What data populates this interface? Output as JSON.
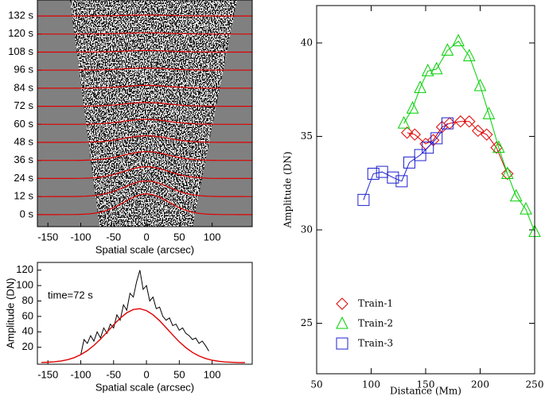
{
  "chart_data": [
    {
      "type": "image",
      "xlabel": "Spatial scale (arcsec)",
      "xlim": [
        -166,
        161
      ],
      "xticks": [
        -150,
        -100,
        -50,
        0,
        50,
        100
      ],
      "ylim": [
        -8,
        142.6
      ],
      "yticks": [
        {
          "value": 0,
          "label": "0 s"
        },
        {
          "value": 12,
          "label": "12 s"
        },
        {
          "value": 24,
          "label": "24 s"
        },
        {
          "value": 36,
          "label": "36 s"
        },
        {
          "value": 48,
          "label": "48 s"
        },
        {
          "value": 60,
          "label": "60 s"
        },
        {
          "value": 72,
          "label": "72 s"
        },
        {
          "value": 84,
          "label": "84 s"
        },
        {
          "value": 96,
          "label": "96 s"
        },
        {
          "value": 108,
          "label": "108 s"
        },
        {
          "value": 120,
          "label": "120 s"
        },
        {
          "value": 132,
          "label": "132 s"
        }
      ]
    },
    {
      "type": "line",
      "annotation": "time=72 s",
      "xlabel": "Spatial scale (arcsec)",
      "ylabel": "Amplitude (DN)",
      "xlim": [
        -166,
        161
      ],
      "xticks": [
        -150,
        -100,
        -50,
        0,
        50,
        100
      ],
      "ylim": [
        -2,
        130
      ],
      "yticks": [
        20,
        40,
        60,
        80,
        100,
        120
      ],
      "series": [
        {
          "color": "#000000",
          "x": [
            -100,
            -95,
            -90,
            -85,
            -80,
            -75,
            -70,
            -65,
            -60,
            -55,
            -50,
            -45,
            -40,
            -35,
            -30,
            -25,
            -20,
            -15,
            -10,
            -5,
            0,
            5,
            10,
            15,
            20,
            25,
            30,
            35,
            40,
            45,
            50,
            55,
            60,
            65,
            70,
            75,
            80,
            85,
            90,
            95
          ],
          "values": [
            10,
            30,
            25,
            35,
            28,
            40,
            32,
            45,
            38,
            50,
            45,
            62,
            55,
            75,
            68,
            90,
            85,
            105,
            120,
            95,
            100,
            80,
            85,
            70,
            72,
            60,
            55,
            58,
            48,
            50,
            42,
            45,
            38,
            35,
            30,
            32,
            25,
            28,
            22,
            15
          ]
        },
        {
          "color": "#e00000",
          "x": [
            -160,
            -150,
            -140,
            -130,
            -120,
            -110,
            -100,
            -90,
            -80,
            -70,
            -60,
            -50,
            -40,
            -30,
            -20,
            -10,
            0,
            10,
            20,
            30,
            40,
            50,
            60,
            70,
            80,
            90,
            100,
            110,
            120,
            130,
            140,
            150
          ],
          "values": [
            0.3,
            0.6,
            1.2,
            2.2,
            3.9,
            6.5,
            10.4,
            15.6,
            22.3,
            30.5,
            39.6,
            49.0,
            57.7,
            64.6,
            68.9,
            70,
            67.5,
            62.1,
            54.4,
            45.3,
            35.9,
            27.1,
            19.5,
            13.3,
            8.7,
            5.4,
            3.2,
            1.8,
            0.9,
            0.5,
            0.2,
            0.1
          ]
        }
      ]
    },
    {
      "type": "scatter-line",
      "xlabel": "Distance (Mm)",
      "ylabel": "Amplitude (DN)",
      "xlim": [
        50,
        250
      ],
      "xticks": [
        50,
        100,
        150,
        200,
        250
      ],
      "ylim": [
        22.3,
        42
      ],
      "yticks": [
        25,
        30,
        35,
        40
      ],
      "legend": "lower left",
      "series": [
        {
          "name": "Train-1",
          "color": "#e00000",
          "marker": "diamond",
          "x": [
            133,
            140,
            150,
            157,
            165,
            172,
            182,
            190,
            198,
            206,
            215,
            225
          ],
          "values": [
            35.2,
            35.1,
            34.6,
            34.8,
            35.5,
            35.7,
            35.8,
            35.8,
            35.3,
            35.1,
            34.4,
            33.0
          ]
        },
        {
          "name": "Train-2",
          "color": "#00d000",
          "marker": "triangle",
          "x": [
            130,
            138,
            145,
            152,
            160,
            170,
            180,
            190,
            200,
            208,
            217,
            225,
            233,
            242,
            250
          ],
          "values": [
            35.7,
            36.5,
            37.6,
            38.5,
            38.6,
            39.6,
            40.1,
            39.3,
            37.7,
            36.2,
            34.4,
            33.0,
            31.8,
            31.1,
            29.9
          ]
        },
        {
          "name": "Train-3",
          "color": "#2020d0",
          "marker": "square",
          "x": [
            93,
            102,
            110,
            120,
            128,
            135,
            145,
            152,
            160,
            170
          ],
          "values": [
            31.6,
            33.0,
            33.1,
            32.8,
            32.6,
            33.6,
            34.0,
            34.4,
            34.9,
            35.7
          ]
        }
      ]
    }
  ]
}
